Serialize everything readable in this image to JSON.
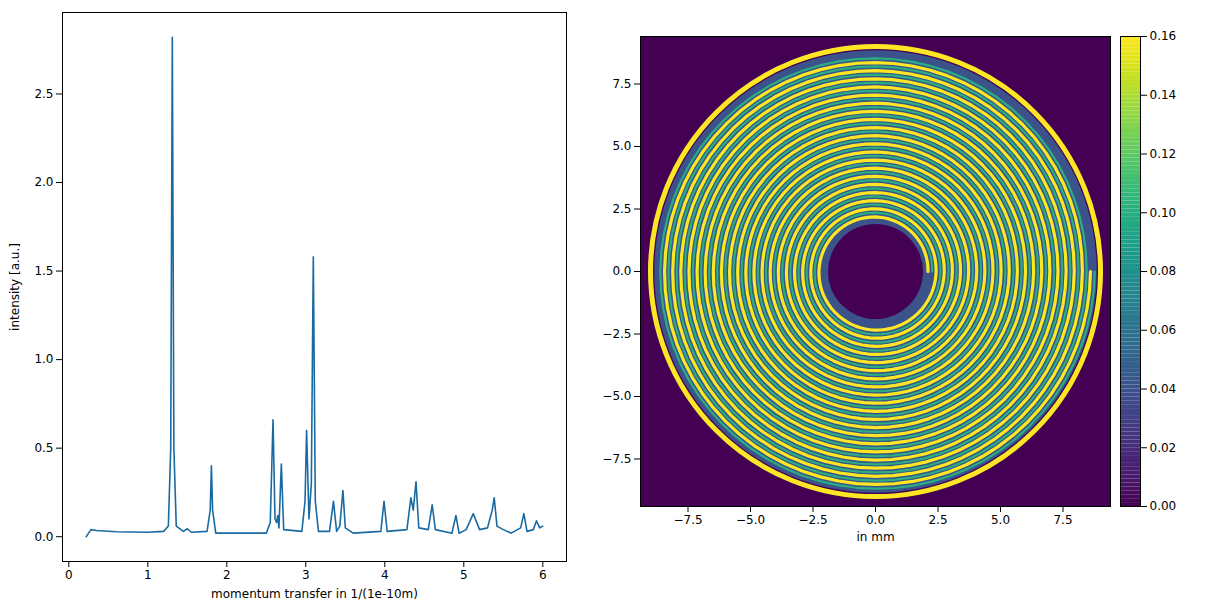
{
  "chart_data": [
    {
      "type": "line",
      "x_label": "momentum transfer in 1/(1e-10m)",
      "y_label": "intensity [a.u.]",
      "color": "#1a6aa2",
      "xlim": [
        -0.08,
        6.3
      ],
      "ylim": [
        -0.14,
        2.96
      ],
      "xticks": [
        0,
        1,
        2,
        3,
        4,
        5,
        6
      ],
      "yticks": [
        {
          "value": 0,
          "label": "0.0"
        },
        {
          "value": 0.5,
          "label": "0.5"
        },
        {
          "value": 1,
          "label": "1.0"
        },
        {
          "value": 1.5,
          "label": "1.5"
        },
        {
          "value": 2,
          "label": "2.0"
        },
        {
          "value": 2.5,
          "label": "2.5"
        }
      ],
      "x": [
        0.22,
        0.25,
        0.28,
        0.35,
        0.6,
        1.0,
        1.2,
        1.26,
        1.29,
        1.31,
        1.33,
        1.36,
        1.45,
        1.5,
        1.55,
        1.75,
        1.79,
        1.805,
        1.82,
        1.86,
        2.5,
        2.55,
        2.585,
        2.61,
        2.63,
        2.645,
        2.66,
        2.69,
        2.72,
        2.95,
        2.99,
        3.01,
        3.04,
        3.07,
        3.095,
        3.12,
        3.16,
        3.3,
        3.35,
        3.39,
        3.43,
        3.47,
        3.5,
        3.6,
        3.95,
        3.99,
        4.03,
        4.28,
        4.33,
        4.36,
        4.395,
        4.43,
        4.55,
        4.6,
        4.64,
        4.85,
        4.9,
        4.94,
        5.03,
        5.12,
        5.2,
        5.3,
        5.33,
        5.36,
        5.385,
        5.42,
        5.5,
        5.6,
        5.72,
        5.76,
        5.8,
        5.88,
        5.92,
        5.96,
        6.0
      ],
      "values": [
        0.0,
        0.02,
        0.04,
        0.035,
        0.028,
        0.025,
        0.03,
        0.06,
        0.5,
        2.82,
        0.5,
        0.06,
        0.03,
        0.045,
        0.025,
        0.03,
        0.15,
        0.4,
        0.15,
        0.02,
        0.02,
        0.08,
        0.66,
        0.1,
        0.08,
        0.12,
        0.05,
        0.41,
        0.04,
        0.03,
        0.2,
        0.6,
        0.1,
        0.3,
        1.58,
        0.2,
        0.03,
        0.03,
        0.2,
        0.03,
        0.06,
        0.26,
        0.05,
        0.02,
        0.03,
        0.2,
        0.03,
        0.04,
        0.22,
        0.15,
        0.31,
        0.05,
        0.04,
        0.18,
        0.04,
        0.02,
        0.12,
        0.02,
        0.04,
        0.13,
        0.04,
        0.05,
        0.1,
        0.15,
        0.22,
        0.06,
        0.04,
        0.02,
        0.05,
        0.13,
        0.03,
        0.04,
        0.09,
        0.05,
        0.06
      ]
    },
    {
      "type": "image",
      "x_label": "in mm",
      "xlim": [
        -9.4,
        9.4
      ],
      "ylim": [
        -9.4,
        9.4
      ],
      "xticks": [
        {
          "value": -7.5,
          "label": "−7.5"
        },
        {
          "value": -5,
          "label": "−5.0"
        },
        {
          "value": -2.5,
          "label": "−2.5"
        },
        {
          "value": 0,
          "label": "0.0"
        },
        {
          "value": 2.5,
          "label": "2.5"
        },
        {
          "value": 5,
          "label": "5.0"
        },
        {
          "value": 7.5,
          "label": "7.5"
        }
      ],
      "yticks": [
        {
          "value": -7.5,
          "label": "−7.5"
        },
        {
          "value": -5,
          "label": "−5.0"
        },
        {
          "value": -2.5,
          "label": "−2.5"
        },
        {
          "value": 0,
          "label": "0.0"
        },
        {
          "value": 2.5,
          "label": "2.5"
        },
        {
          "value": 5,
          "label": "5.0"
        },
        {
          "value": 7.5,
          "label": "7.5"
        }
      ],
      "center": [
        0,
        0
      ],
      "background": 0,
      "fill": {
        "radius": 8.85,
        "value": 0.04
      },
      "hole": {
        "radius": 1.9,
        "value": 0
      },
      "spirals": [
        {
          "inner_radius": 2.1,
          "outer_radius": 8.6,
          "turns": 20,
          "value": 0.16
        },
        {
          "inner_radius": 2.27,
          "outer_radius": 8.77,
          "turns": 20,
          "value": 0.1
        }
      ],
      "outer_ring": {
        "radius": 9.0,
        "value": 0.16
      },
      "colorbar": {
        "color": "viridis",
        "range": [
          0,
          0.16
        ],
        "ticks": [
          {
            "value": 0,
            "label": "0.00"
          },
          {
            "value": 0.02,
            "label": "0.02"
          },
          {
            "value": 0.04,
            "label": "0.04"
          },
          {
            "value": 0.06,
            "label": "0.06"
          },
          {
            "value": 0.08,
            "label": "0.08"
          },
          {
            "value": 0.1,
            "label": "0.10"
          },
          {
            "value": 0.12,
            "label": "0.12"
          },
          {
            "value": 0.14,
            "label": "0.14"
          },
          {
            "value": 0.16,
            "label": "0.16"
          }
        ]
      }
    }
  ]
}
